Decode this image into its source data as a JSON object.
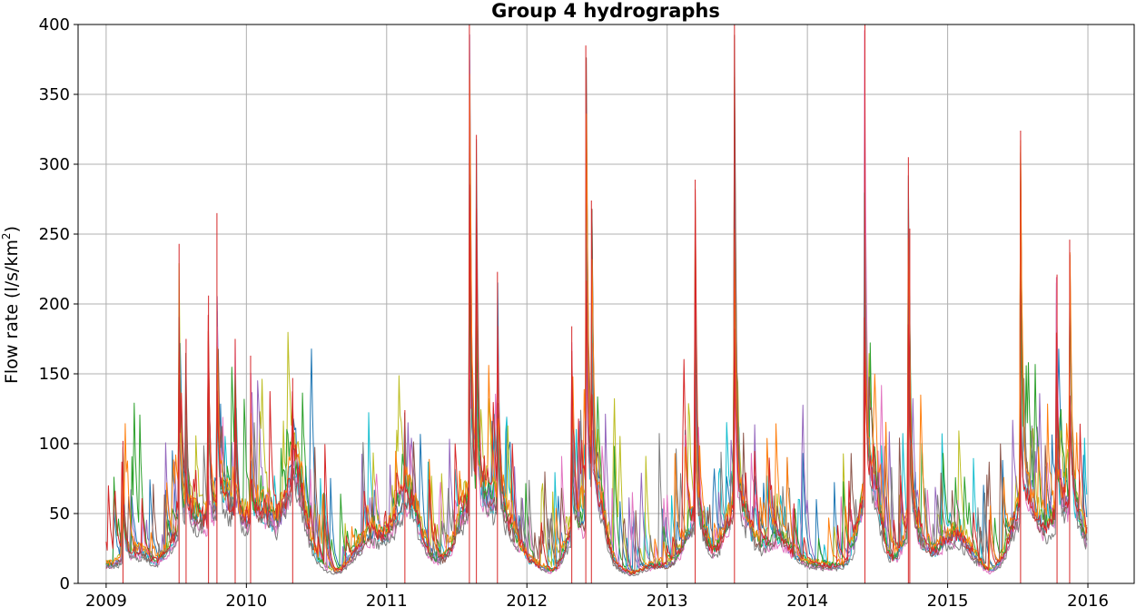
{
  "chart_data": {
    "type": "line",
    "title": "Group 4 hydrographs",
    "xlabel": "",
    "ylabel": "Flow rate (l/s/km",
    "ylabel_sup": "2",
    "ylabel_close": ")",
    "xlim": [
      2008.8,
      2016.33
    ],
    "ylim": [
      0,
      400
    ],
    "grid": true,
    "x_ticks": [
      2009,
      2010,
      2011,
      2012,
      2013,
      2014,
      2015,
      2016
    ],
    "x_tick_labels": [
      "2009",
      "2010",
      "2011",
      "2012",
      "2013",
      "2014",
      "2015",
      "2016"
    ],
    "y_ticks": [
      0,
      50,
      100,
      150,
      200,
      250,
      300,
      350,
      400
    ],
    "y_tick_labels": [
      "0",
      "50",
      "100",
      "150",
      "200",
      "250",
      "300",
      "350",
      "400"
    ],
    "series_colors": [
      "#1f77b4",
      "#17becf",
      "#bcbd22",
      "#9467bd",
      "#e377c2",
      "#2ca02c",
      "#8c564b",
      "#7f7f7f",
      "#ff7f0e",
      "#d62728"
    ],
    "key_peaks": [
      {
        "x": 2009.12,
        "y": 102
      },
      {
        "x": 2009.52,
        "y": 243
      },
      {
        "x": 2009.57,
        "y": 175
      },
      {
        "x": 2009.73,
        "y": 206
      },
      {
        "x": 2009.79,
        "y": 265
      },
      {
        "x": 2009.92,
        "y": 175
      },
      {
        "x": 2010.03,
        "y": 163
      },
      {
        "x": 2010.33,
        "y": 147
      },
      {
        "x": 2011.13,
        "y": 124
      },
      {
        "x": 2011.59,
        "y": 400
      },
      {
        "x": 2011.64,
        "y": 321
      },
      {
        "x": 2011.79,
        "y": 223
      },
      {
        "x": 2012.32,
        "y": 184
      },
      {
        "x": 2012.42,
        "y": 385
      },
      {
        "x": 2012.46,
        "y": 274
      },
      {
        "x": 2013.2,
        "y": 289
      },
      {
        "x": 2013.48,
        "y": 400
      },
      {
        "x": 2014.41,
        "y": 400
      },
      {
        "x": 2014.72,
        "y": 305
      },
      {
        "x": 2014.73,
        "y": 254
      },
      {
        "x": 2015.52,
        "y": 324
      },
      {
        "x": 2015.78,
        "y": 221
      },
      {
        "x": 2015.87,
        "y": 246
      }
    ]
  }
}
